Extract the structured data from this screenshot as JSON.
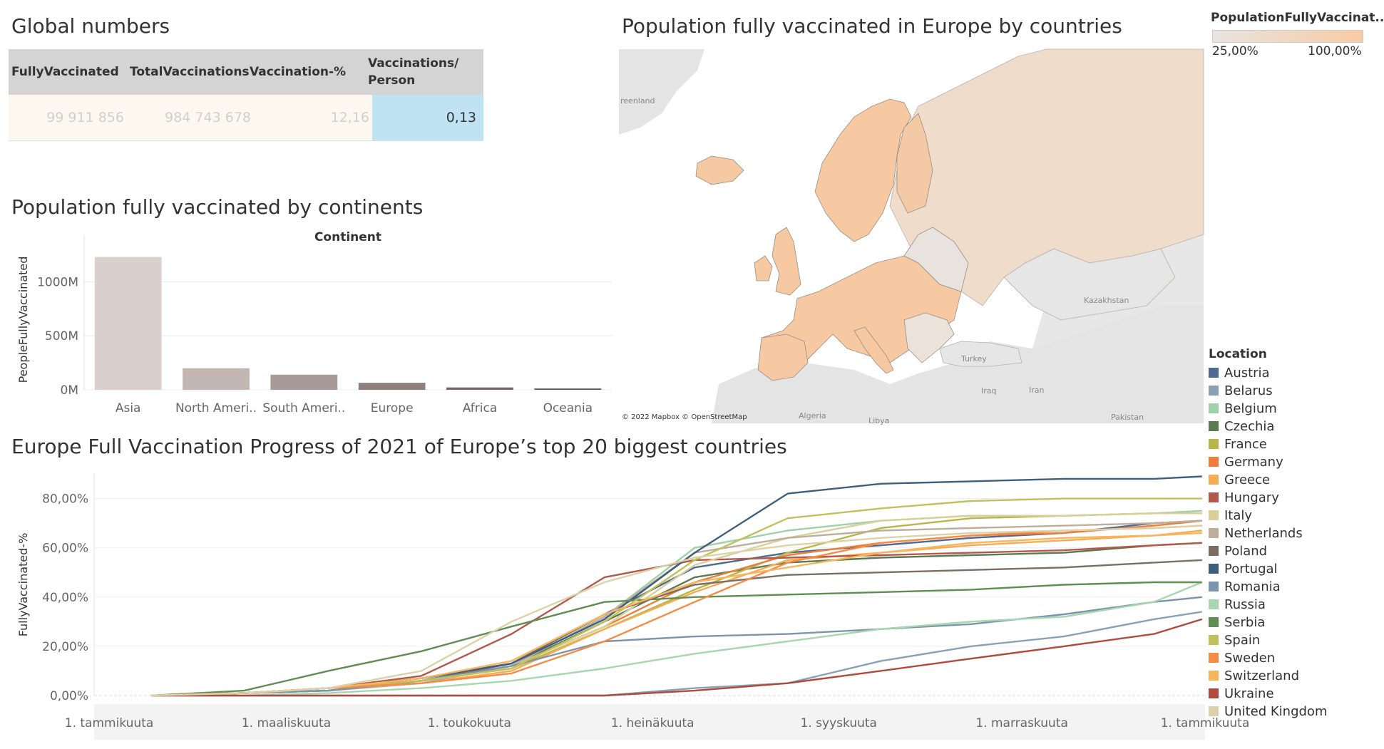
{
  "global": {
    "title": "Global numbers",
    "headers": [
      "FullyVaccinated",
      "TotalVaccinations",
      "Vaccination-%",
      "Vaccinations/ Person"
    ],
    "values": [
      "99 911 856",
      "984 743 678",
      "12,16",
      "0,13"
    ]
  },
  "map": {
    "title": "Population fully vaccinated in Europe by countries",
    "legend_title": "PopulationFullyVaccinat..",
    "legend_min": "25,00%",
    "legend_max": "100,00%",
    "attribution": "© 2022 Mapbox © OpenStreetMap",
    "labels": [
      "reenland",
      "Kazakhstan",
      "Turkey",
      "Iraq",
      "Iran",
      "Algeria",
      "Libya",
      "Pakistan"
    ],
    "colors": {
      "low": "#e8e4e0",
      "high": "#f8cba4",
      "mid": "#f0d5bd",
      "sea": "#ffffff",
      "land": "#e4e4e4"
    }
  },
  "bar": {
    "title": "Population fully vaccinated by continents",
    "col_header": "Continent",
    "ylabel": "PeopleFullyVaccinated",
    "categories": [
      "Asia",
      "North Ameri..",
      "South Ameri..",
      "Europe",
      "Africa",
      "Oceania"
    ],
    "tick_labels": [
      "0M",
      "500M",
      "1000M"
    ],
    "colors": [
      "#d9cfcd",
      "#c2b6b3",
      "#a89a96",
      "#8e807c",
      "#756864",
      "#5e5451"
    ]
  },
  "line": {
    "title": "Europe Full Vaccination Progress of 2021 of Europe’s top 20 biggest countries",
    "ylabel": "FullyVaccinated-%",
    "ytick_labels": [
      "0,00%",
      "20,00%",
      "40,00%",
      "60,00%",
      "80,00%"
    ],
    "xtick_labels": [
      "1. tammikuuta",
      "1. maaliskuuta",
      "1. toukokuuta",
      "1. heinäkuuta",
      "1. syyskuuta",
      "1. marraskuuta",
      "1. tammikuuta"
    ],
    "legend_title": "Location"
  },
  "chart_data": [
    {
      "type": "bar",
      "title": "Population fully vaccinated by continents",
      "xlabel": "Continent",
      "ylabel": "PeopleFullyVaccinated",
      "categories": [
        "Asia",
        "North Ameri..",
        "South Ameri..",
        "Europe",
        "Africa",
        "Oceania"
      ],
      "values": [
        1230,
        200,
        140,
        65,
        22,
        12
      ],
      "unit": "M",
      "ylim": [
        0,
        1300
      ],
      "yticks": [
        0,
        500,
        1000
      ],
      "grid": true
    },
    {
      "type": "line",
      "title": "Europe Full Vaccination Progress of 2021 of Europe’s top 20 biggest countries",
      "xlabel": "",
      "ylabel": "FullyVaccinated-%",
      "ylim": [
        0,
        90
      ],
      "yticks": [
        0,
        20,
        40,
        60,
        80
      ],
      "x": [
        "2021-01-15",
        "2021-02-15",
        "2021-03-15",
        "2021-04-15",
        "2021-05-15",
        "2021-06-15",
        "2021-07-15",
        "2021-08-15",
        "2021-09-15",
        "2021-10-15",
        "2021-11-15",
        "2021-12-15",
        "2021-12-31"
      ],
      "x_range": [
        "2020-12-27",
        "2022-01-01"
      ],
      "grid": true,
      "legend_position": "right",
      "series": [
        {
          "name": "Austria",
          "color": "#4e6a8e",
          "values": [
            0,
            1,
            3,
            7,
            13,
            33,
            52,
            58,
            61,
            64,
            66,
            70,
            71
          ]
        },
        {
          "name": "Belarus",
          "color": "#8aa0b4",
          "values": [
            0,
            0,
            0,
            0,
            0,
            0,
            3,
            5,
            14,
            20,
            24,
            31,
            34
          ]
        },
        {
          "name": "Belgium",
          "color": "#9fd0a8",
          "values": [
            0,
            1,
            3,
            6,
            12,
            32,
            60,
            67,
            71,
            73,
            73,
            74,
            75
          ]
        },
        {
          "name": "Czechia",
          "color": "#5a7a52",
          "values": [
            0,
            1,
            2,
            6,
            12,
            30,
            48,
            54,
            56,
            57,
            58,
            61,
            62
          ]
        },
        {
          "name": "France",
          "color": "#b8b64a",
          "values": [
            0,
            1,
            3,
            6,
            11,
            27,
            43,
            58,
            68,
            72,
            73,
            74,
            74
          ]
        },
        {
          "name": "Germany",
          "color": "#f07d3c",
          "values": [
            0,
            1,
            3,
            6,
            12,
            28,
            46,
            57,
            62,
            65,
            66,
            69,
            71
          ]
        },
        {
          "name": "Greece",
          "color": "#f5ad53",
          "values": [
            0,
            1,
            2,
            5,
            10,
            27,
            42,
            55,
            58,
            61,
            63,
            65,
            67
          ]
        },
        {
          "name": "Hungary",
          "color": "#b5584c",
          "values": [
            0,
            1,
            3,
            8,
            25,
            48,
            55,
            56,
            57,
            58,
            59,
            61,
            62
          ]
        },
        {
          "name": "Italy",
          "color": "#d9cf9a",
          "values": [
            0,
            1,
            3,
            6,
            12,
            28,
            53,
            64,
            71,
            73,
            73,
            74,
            74
          ]
        },
        {
          "name": "Netherlands",
          "color": "#bfad9c",
          "values": [
            0,
            1,
            2,
            5,
            12,
            32,
            58,
            64,
            67,
            68,
            69,
            70,
            71
          ]
        },
        {
          "name": "Poland",
          "color": "#7a6d62",
          "values": [
            0,
            1,
            2,
            6,
            13,
            33,
            45,
            49,
            50,
            51,
            52,
            54,
            55
          ]
        },
        {
          "name": "Portugal",
          "color": "#3f5e7e",
          "values": [
            0,
            1,
            3,
            7,
            13,
            31,
            58,
            82,
            86,
            87,
            88,
            88,
            89
          ]
        },
        {
          "name": "Romania",
          "color": "#7c94ad",
          "values": [
            0,
            1,
            2,
            6,
            12,
            22,
            24,
            25,
            27,
            29,
            33,
            38,
            40
          ]
        },
        {
          "name": "Russia",
          "color": "#a8d6b0",
          "values": [
            0,
            0,
            1,
            3,
            6,
            11,
            17,
            22,
            27,
            30,
            32,
            38,
            46
          ]
        },
        {
          "name": "Serbia",
          "color": "#5f8d52",
          "values": [
            0,
            2,
            10,
            18,
            28,
            38,
            40,
            41,
            42,
            43,
            45,
            46,
            46
          ]
        },
        {
          "name": "Spain",
          "color": "#c2c05a",
          "values": [
            0,
            1,
            3,
            6,
            11,
            30,
            55,
            72,
            76,
            79,
            80,
            80,
            80
          ]
        },
        {
          "name": "Sweden",
          "color": "#f58b45",
          "values": [
            0,
            1,
            3,
            5,
            9,
            22,
            38,
            54,
            62,
            65,
            67,
            68,
            69
          ]
        },
        {
          "name": "Switzerland",
          "color": "#f7b55e",
          "values": [
            0,
            1,
            3,
            7,
            14,
            33,
            46,
            52,
            58,
            62,
            64,
            65,
            66
          ]
        },
        {
          "name": "Ukraine",
          "color": "#b04a3c",
          "values": [
            0,
            0,
            0,
            0,
            0,
            0,
            2,
            5,
            10,
            15,
            20,
            25,
            31
          ]
        },
        {
          "name": "United Kingdom",
          "color": "#dcd2a9",
          "values": [
            0,
            1,
            3,
            10,
            30,
            46,
            56,
            61,
            64,
            66,
            67,
            68,
            69
          ]
        }
      ]
    }
  ]
}
